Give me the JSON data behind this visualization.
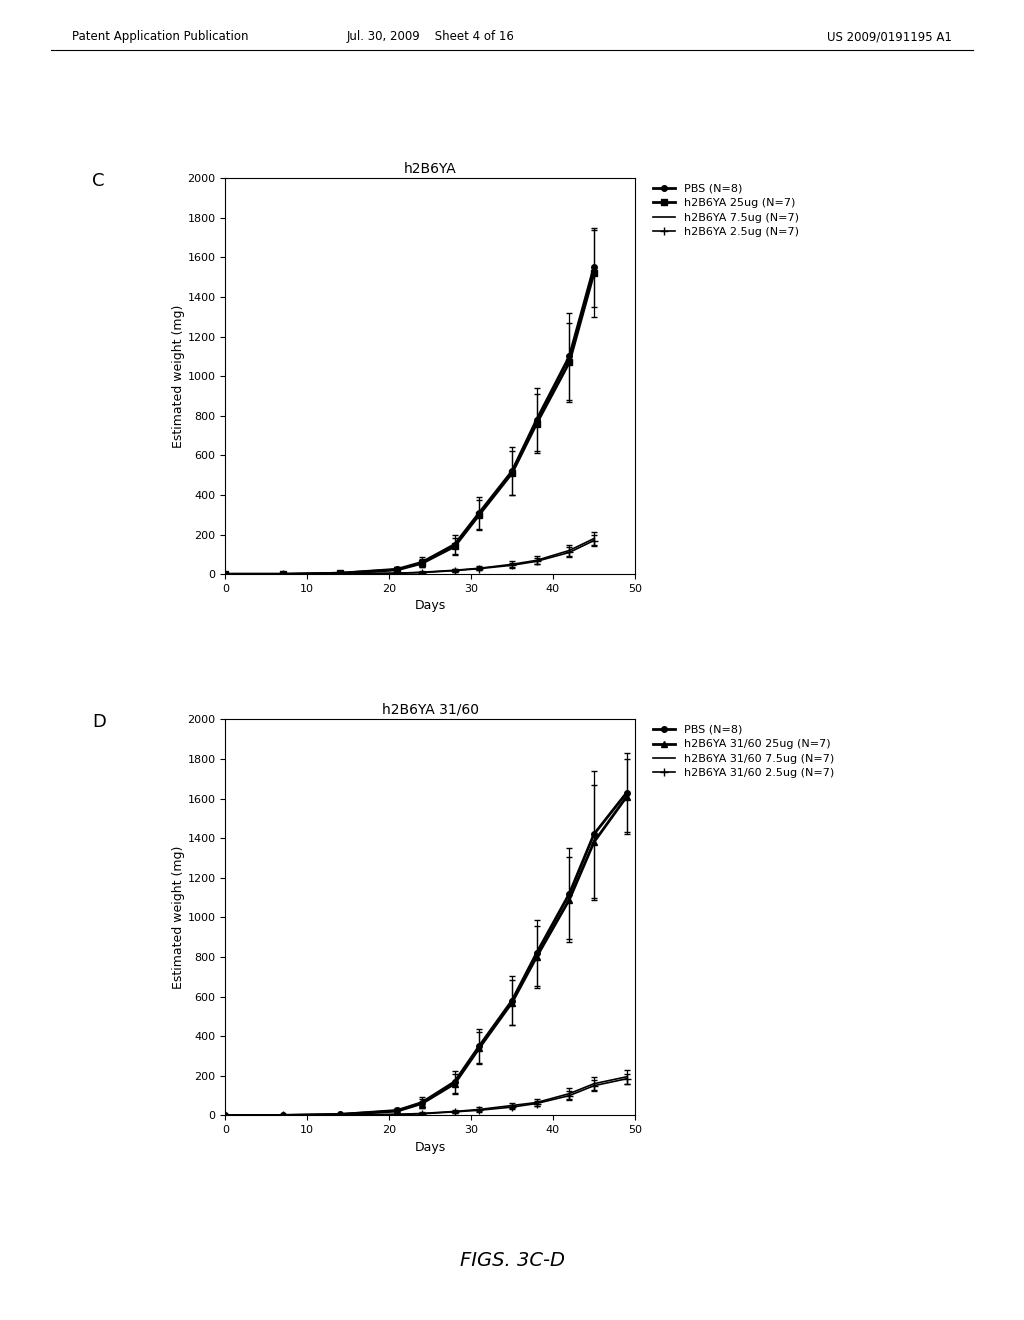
{
  "header_left": "Patent Application Publication",
  "header_mid": "Jul. 30, 2009    Sheet 4 of 16",
  "header_right": "US 2009/0191195 A1",
  "footer": "FIGS. 3C-D",
  "panel_C_label": "C",
  "panel_D_label": "D",
  "title_C": "h2B6YA",
  "title_D": "h2B6YA 31/60",
  "xlabel": "Days",
  "ylabel": "Estimated weight (mg)",
  "xlim": [
    0,
    50
  ],
  "ylim": [
    0,
    2000
  ],
  "yticks": [
    0,
    200,
    400,
    600,
    800,
    1000,
    1200,
    1400,
    1600,
    1800,
    2000
  ],
  "xticks": [
    0,
    10,
    20,
    30,
    40,
    50
  ],
  "series_C": [
    {
      "label": "PBS (N=8)",
      "x": [
        0,
        7,
        14,
        21,
        24,
        28,
        31,
        35,
        38,
        42,
        45
      ],
      "y": [
        0,
        0,
        5,
        25,
        60,
        150,
        310,
        520,
        780,
        1100,
        1550
      ],
      "yerr": [
        0,
        0,
        3,
        10,
        25,
        50,
        80,
        120,
        160,
        220,
        200
      ],
      "color": "#000000",
      "marker": "o",
      "linewidth": 2,
      "markersize": 4
    },
    {
      "label": "h2B6YA 25ug (N=7)",
      "x": [
        0,
        7,
        14,
        21,
        24,
        28,
        31,
        35,
        38,
        42,
        45
      ],
      "y": [
        0,
        0,
        5,
        22,
        55,
        140,
        300,
        510,
        760,
        1070,
        1520
      ],
      "yerr": [
        0,
        0,
        3,
        10,
        20,
        45,
        75,
        110,
        150,
        200,
        220
      ],
      "color": "#000000",
      "marker": "s",
      "linewidth": 2,
      "markersize": 4
    },
    {
      "label": "h2B6YA 7.5ug (N=7)",
      "x": [
        0,
        7,
        14,
        21,
        24,
        28,
        31,
        35,
        38,
        42,
        45
      ],
      "y": [
        0,
        0,
        2,
        5,
        10,
        20,
        30,
        50,
        70,
        120,
        180
      ],
      "yerr": [
        0,
        0,
        1,
        3,
        5,
        8,
        10,
        15,
        20,
        30,
        35
      ],
      "color": "#000000",
      "marker": "None",
      "linewidth": 1.2,
      "markersize": 0
    },
    {
      "label": "h2B6YA 2.5ug (N=7)",
      "x": [
        0,
        7,
        14,
        21,
        24,
        28,
        31,
        35,
        38,
        42,
        45
      ],
      "y": [
        0,
        0,
        2,
        5,
        8,
        18,
        28,
        45,
        65,
        110,
        170
      ],
      "yerr": [
        0,
        0,
        1,
        3,
        4,
        7,
        8,
        12,
        15,
        25,
        30
      ],
      "color": "#000000",
      "marker": "+",
      "linewidth": 1.2,
      "markersize": 6
    }
  ],
  "series_D": [
    {
      "label": "PBS (N=8)",
      "x": [
        0,
        7,
        14,
        21,
        24,
        28,
        31,
        35,
        38,
        42,
        45,
        49
      ],
      "y": [
        0,
        0,
        5,
        25,
        65,
        170,
        350,
        580,
        820,
        1120,
        1420,
        1630
      ],
      "yerr": [
        0,
        0,
        3,
        10,
        28,
        55,
        85,
        125,
        165,
        230,
        320,
        200
      ],
      "color": "#000000",
      "marker": "o",
      "linewidth": 2,
      "markersize": 4
    },
    {
      "label": "h2B6YA 31/60 25ug (N=7)",
      "x": [
        0,
        7,
        14,
        21,
        24,
        28,
        31,
        35,
        38,
        42,
        45,
        49
      ],
      "y": [
        0,
        0,
        5,
        22,
        60,
        160,
        340,
        570,
        800,
        1090,
        1380,
        1610
      ],
      "yerr": [
        0,
        0,
        3,
        10,
        22,
        50,
        80,
        115,
        155,
        215,
        290,
        190
      ],
      "color": "#000000",
      "marker": "^",
      "linewidth": 2,
      "markersize": 4
    },
    {
      "label": "h2B6YA 31/60 7.5ug (N=7)",
      "x": [
        0,
        7,
        14,
        21,
        24,
        28,
        31,
        35,
        38,
        42,
        45,
        49
      ],
      "y": [
        0,
        0,
        2,
        5,
        10,
        20,
        30,
        50,
        65,
        110,
        160,
        195
      ],
      "yerr": [
        0,
        0,
        1,
        3,
        5,
        8,
        10,
        14,
        18,
        28,
        32,
        35
      ],
      "color": "#000000",
      "marker": "None",
      "linewidth": 1.2,
      "markersize": 0
    },
    {
      "label": "h2B6YA 31/60 2.5ug (N=7)",
      "x": [
        0,
        7,
        14,
        21,
        24,
        28,
        31,
        35,
        38,
        42,
        45,
        49
      ],
      "y": [
        0,
        0,
        2,
        5,
        8,
        18,
        26,
        42,
        60,
        100,
        150,
        185
      ],
      "yerr": [
        0,
        0,
        1,
        3,
        4,
        6,
        8,
        11,
        14,
        22,
        28,
        25
      ],
      "color": "#000000",
      "marker": "+",
      "linewidth": 1.2,
      "markersize": 6
    }
  ],
  "bg_color": "#ffffff",
  "text_color": "#000000",
  "header_fontsize": 8.5,
  "footer_fontsize": 14,
  "title_fontsize": 10,
  "label_fontsize": 9,
  "tick_fontsize": 8,
  "legend_fontsize": 8
}
